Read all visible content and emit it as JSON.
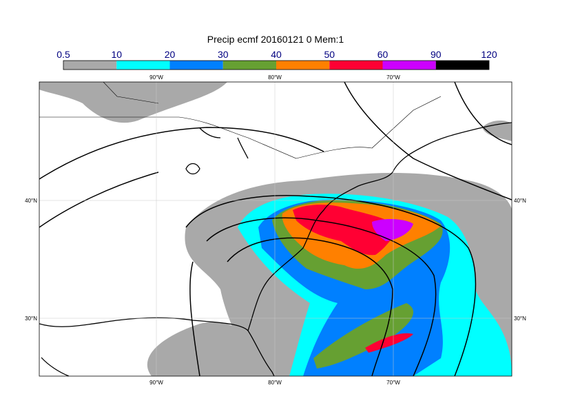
{
  "title": "Precip ecmf 20160121 0 Mem:1",
  "colorbar": {
    "levels": [
      0.5,
      10,
      20,
      30,
      40,
      50,
      60,
      90,
      120
    ],
    "colors": [
      "#a9a9a9",
      "#00ffff",
      "#0080ff",
      "#66a032",
      "#ff8000",
      "#ff0033",
      "#cc00ff",
      "#000000"
    ]
  },
  "map": {
    "lon_labels": [
      "90°W",
      "80°W",
      "70°W"
    ],
    "lat_labels": [
      "40°N",
      "30°N"
    ]
  }
}
